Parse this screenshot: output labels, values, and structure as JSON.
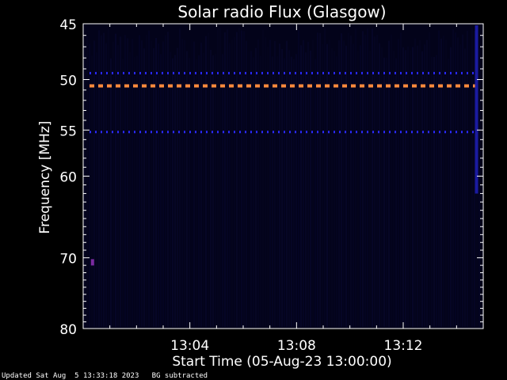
{
  "chart_data": {
    "type": "heatmap",
    "title": "Solar radio Flux (Glasgow)",
    "xlabel": "Start Time (05-Aug-23 13:00:00)",
    "ylabel": "Frequency [MHz]",
    "x_unit": "minutes after 13:00:00",
    "xlim": [
      0,
      15.0
    ],
    "ylim": [
      80,
      45
    ],
    "y_scale": "log",
    "x_ticks": [
      {
        "value": 4,
        "label": "13:04"
      },
      {
        "value": 8,
        "label": "13:08"
      },
      {
        "value": 12,
        "label": "13:12"
      }
    ],
    "y_ticks": [
      45,
      50,
      55,
      60,
      70,
      80
    ],
    "grid": false,
    "features": [
      {
        "kind": "dashed-band",
        "freq_mhz": 50.6,
        "color": "#ff8a3c"
      },
      {
        "kind": "dashed-band",
        "freq_mhz": 49.4,
        "color": "#2a2aff"
      },
      {
        "kind": "dashed-band",
        "freq_mhz": 55.2,
        "color": "#2a2aff"
      },
      {
        "kind": "vertical-burst",
        "time_min": 14.75,
        "color": "#1a1aa0"
      },
      {
        "kind": "spot",
        "time_min": 0.35,
        "freq_mhz": 70.6,
        "color": "#7a2aa0"
      }
    ],
    "colors": {
      "background": "#000000",
      "field": "#03031a",
      "axis": "#ffffff"
    }
  },
  "footer": {
    "updated": "Updated Sat Aug  5 13:33:18 2023",
    "note": "BG subtracted"
  }
}
